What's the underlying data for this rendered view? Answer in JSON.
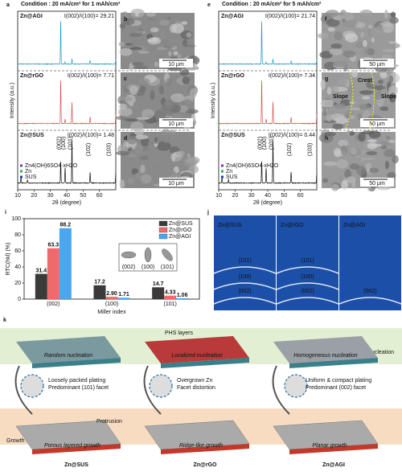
{
  "panel_a": {
    "letter": "a",
    "condition": "Condition : 20 mA/cm² for 1 mAh/cm²",
    "samples": [
      {
        "name": "Zn@AGI",
        "ratio": "I(002)/I(100)= 29.21"
      },
      {
        "name": "Zn@rGO",
        "ratio": "I(002)/I(100)= 7.71"
      },
      {
        "name": "Zn@SUS",
        "ratio": "I(002)/I(100)= 1.48"
      }
    ],
    "legend": [
      "Zn4(OH)6SO4·xH2O",
      "Zn",
      "SUS"
    ],
    "peaks": [
      "(002)",
      "(100)",
      "(101)",
      "(102)",
      "(103)"
    ],
    "y_label": "Intensity (a.u.)",
    "x_label": "2θ (degree)",
    "xlim": [
      10,
      70
    ],
    "xticks": [
      10,
      20,
      30,
      40,
      50,
      60
    ]
  },
  "panels_bcd": [
    {
      "letter": "b",
      "scale": "10 μm"
    },
    {
      "letter": "c",
      "scale": "10 μm"
    },
    {
      "letter": "d",
      "scale": "10 μm"
    }
  ],
  "panel_e": {
    "letter": "e",
    "condition": "Condition : 20 mA/cm² for 5 mAh/cm²",
    "samples": [
      {
        "name": "Zn@AGI",
        "ratio": "I(002)/I(100)= 21.74"
      },
      {
        "name": "Zn@rGO",
        "ratio": "I(002)/I(100)= 7.34"
      },
      {
        "name": "Zn@SUS",
        "ratio": "I(002)/I(100)= 0.44"
      }
    ],
    "legend": [
      "Zn4(OH)6SO4·xH2O",
      "Zn",
      "SUS"
    ],
    "peaks": [
      "(002)",
      "(100)",
      "(101)",
      "(102)",
      "(103)"
    ],
    "y_label": "Intensity (a.u.)",
    "x_label": "2θ (degree)",
    "xlim": [
      10,
      70
    ],
    "xticks": [
      10,
      20,
      30,
      40,
      50,
      60
    ]
  },
  "panels_fgh": [
    {
      "letter": "f",
      "scale": "50 μm"
    },
    {
      "letter": "g",
      "scale": "50 μm",
      "notes": [
        "Crest",
        "Slope",
        "Slope"
      ]
    },
    {
      "letter": "h",
      "scale": "50 μm"
    }
  ],
  "panel_i": {
    "letter": "i",
    "y_label": "RTC(hkl) (%)",
    "x_label": "Miller index",
    "categories": [
      "(002)",
      "(100)",
      "(101)"
    ],
    "series": [
      {
        "name": "Zn@SUS",
        "color": "#3a3a3a",
        "values": [
          31.4,
          17.2,
          14.7
        ]
      },
      {
        "name": "Zn@rGO",
        "color": "#ef6b6b",
        "values": [
          63.3,
          2.9,
          4.33
        ],
        "value_labels": [
          "63.3",
          "2.90",
          "4.33"
        ]
      },
      {
        "name": "Zn@AGI",
        "color": "#4aa6ee",
        "values": [
          88.2,
          1.71,
          1.06
        ]
      }
    ],
    "ylim": [
      0,
      100
    ],
    "yticks": [
      0,
      20,
      40,
      60,
      80,
      100
    ],
    "inset_labels": [
      "(002)",
      "(100)",
      "(101)"
    ]
  },
  "panel_j": {
    "letter": "j",
    "images": [
      {
        "name": "Zn@SUS",
        "rings": [
          "(101)",
          "(100)",
          "(002)"
        ]
      },
      {
        "name": "Zn@rGO",
        "rings": [
          "(101)",
          "(100)",
          "(002)"
        ]
      },
      {
        "name": "Zn@AGI",
        "rings": [
          "(002)"
        ]
      }
    ]
  },
  "panel_k": {
    "letter": "k",
    "stages": [
      "Nucleation",
      "Growth"
    ],
    "nucleation": [
      "Random nucleation",
      "Localized nucleation",
      "Homogeneous nucleation"
    ],
    "phs": "PHS layers",
    "notes": [
      [
        "Loosely packed plating",
        "Predominant (101) facet"
      ],
      [
        "Overgrown Zn",
        "Facet distortion"
      ],
      [
        "Uniform & compact plating",
        "Predominant (002) facet"
      ]
    ],
    "growth": [
      "Porous layered growth",
      "Ridge-like growth",
      "Planar growth"
    ],
    "protrusion": "Protrusion",
    "samples": [
      "Zn@SUS",
      "Zn@rGO",
      "Zn@AGI"
    ]
  }
}
